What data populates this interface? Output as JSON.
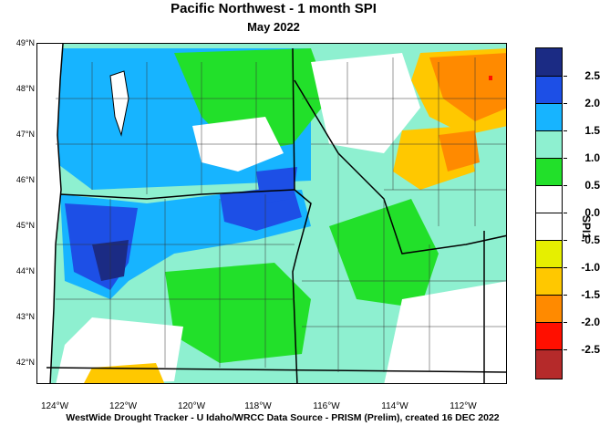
{
  "title": "Pacific Northwest - 1 month SPI",
  "subtitle": "May 2022",
  "credit": "WestWide Drought Tracker - U Idaho/WRCC  Data Source - PRISM (Prelim), created 16 DEC 2022",
  "latitude_labels": [
    "49°N",
    "48°N",
    "47°N",
    "46°N",
    "45°N",
    "44°N",
    "43°N",
    "42°N"
  ],
  "longitude_labels": [
    "124°W",
    "122°W",
    "120°W",
    "118°W",
    "116°W",
    "114°W",
    "112°W"
  ],
  "legend": {
    "title": "SPI1",
    "labels": [
      "2.5",
      "2.0",
      "1.5",
      "1.0",
      "0.5",
      "0.0",
      "-0.5",
      "-1.0",
      "-1.5",
      "-2.0",
      "-2.5"
    ],
    "colors": [
      "#1b2b84",
      "#1d4fe6",
      "#17b4ff",
      "#8ef0d0",
      "#22e02a",
      "#ffffff",
      "#ffffff",
      "#e6ef00",
      "#ffc800",
      "#ff8a00",
      "#ff0f00",
      "#b52a2a"
    ]
  }
}
